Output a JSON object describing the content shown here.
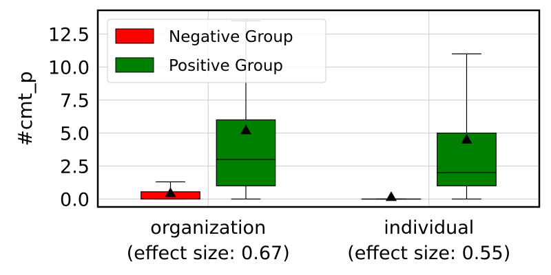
{
  "chart_data": {
    "type": "boxplot",
    "ylabel": "#cmt_p",
    "xlabel": "",
    "ylim": [
      -0.6,
      14.3
    ],
    "yticks": [
      "0.0",
      "2.5",
      "5.0",
      "7.5",
      "10.0",
      "12.5"
    ],
    "ytick_values": [
      0,
      2.5,
      5,
      7.5,
      10,
      12.5
    ],
    "grid": true,
    "legend_position": "top-left",
    "categories": [
      {
        "line1": "organization",
        "line2": "(effect size: 0.67)"
      },
      {
        "line1": "individual",
        "line2": "(effect size: 0.55)"
      }
    ],
    "series": [
      {
        "name": "Negative Group",
        "color": "#ff0000",
        "boxes": [
          {
            "whislo": 0,
            "q1": 0,
            "median": 0,
            "q3": 0.55,
            "whishi": 1.3,
            "mean": 0.45
          },
          {
            "whislo": 0,
            "q1": 0,
            "median": 0,
            "q3": 0,
            "whishi": 0,
            "mean": 0.15
          }
        ]
      },
      {
        "name": "Positive Group",
        "color": "#008000",
        "boxes": [
          {
            "whislo": 0,
            "q1": 1,
            "median": 3,
            "q3": 6,
            "whishi": 13.5,
            "mean": 5.2
          },
          {
            "whislo": 0,
            "q1": 1,
            "median": 2,
            "q3": 5,
            "whishi": 11,
            "mean": 4.5
          }
        ]
      }
    ]
  }
}
